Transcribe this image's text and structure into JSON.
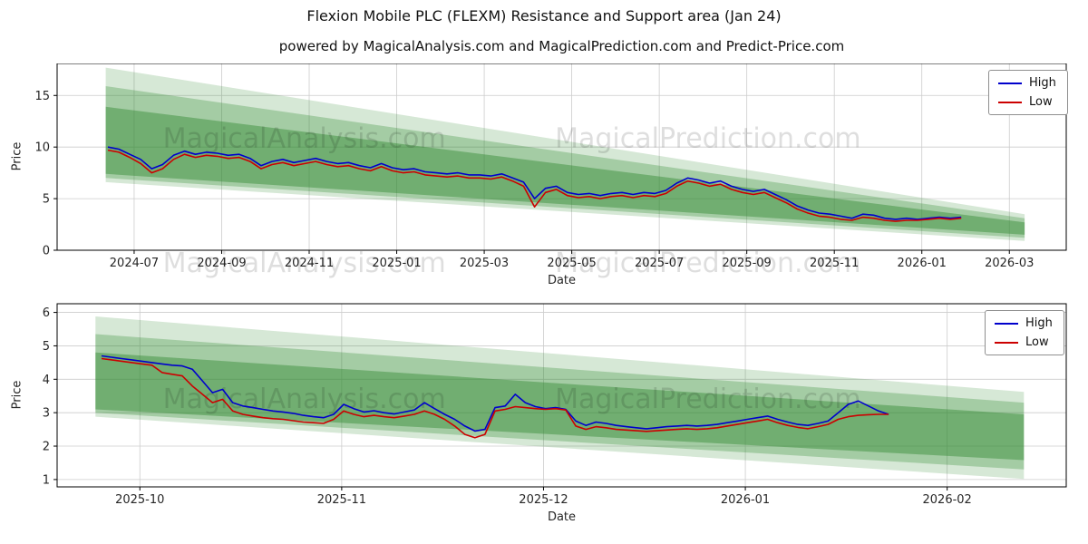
{
  "figure": {
    "title": "Flexion Mobile PLC (FLEXM) Resistance and Support area (Jan 24)",
    "subtitle": "powered by MagicalAnalysis.com and MagicalPrediction.com and Predict-Price.com"
  },
  "watermarks": {
    "left": "MagicalAnalysis.com",
    "right": "MagicalPrediction.com"
  },
  "colors": {
    "high": "#0000cc",
    "low": "#cc0000",
    "band": "#338a33",
    "grid": "#cccccc",
    "spine": "#000000",
    "watermark": "rgba(0,0,0,0.13)"
  },
  "legend": {
    "items": [
      {
        "label": "High",
        "color": "#0000cc"
      },
      {
        "label": "Low",
        "color": "#cc0000"
      }
    ]
  },
  "chart_data": [
    {
      "type": "line",
      "xlabel": "Date",
      "ylabel": "Price",
      "xlim": [
        -0.76,
        22.3
      ],
      "ylim": [
        0,
        18.1
      ],
      "xticks": [
        {
          "v": 1,
          "label": "2024-07"
        },
        {
          "v": 3,
          "label": "2024-09"
        },
        {
          "v": 5,
          "label": "2024-11"
        },
        {
          "v": 7,
          "label": "2025-01"
        },
        {
          "v": 9,
          "label": "2025-03"
        },
        {
          "v": 11,
          "label": "2025-05"
        },
        {
          "v": 13,
          "label": "2025-07"
        },
        {
          "v": 15,
          "label": "2025-09"
        },
        {
          "v": 17,
          "label": "2025-11"
        },
        {
          "v": 19,
          "label": "2026-01"
        },
        {
          "v": 21,
          "label": "2026-03"
        }
      ],
      "yticks": [
        0,
        5,
        10,
        15
      ],
      "bands": [
        {
          "x": [
            0.35,
            21.35
          ],
          "upper": [
            17.7,
            3.5
          ],
          "lower": [
            6.6,
            0.9
          ],
          "alpha": 0.2
        },
        {
          "x": [
            0.35,
            21.35
          ],
          "upper": [
            15.9,
            3.1
          ],
          "lower": [
            7.0,
            1.2
          ],
          "alpha": 0.3
        },
        {
          "x": [
            0.35,
            21.35
          ],
          "upper": [
            13.9,
            2.7
          ],
          "lower": [
            7.4,
            1.5
          ],
          "alpha": 0.45
        }
      ],
      "series": [
        {
          "name": "High",
          "color": "#0000cc",
          "x_start": 0.4,
          "x_step": 0.25,
          "y": [
            10.0,
            9.8,
            9.3,
            8.8,
            7.9,
            8.3,
            9.2,
            9.6,
            9.3,
            9.5,
            9.4,
            9.2,
            9.3,
            8.9,
            8.2,
            8.6,
            8.8,
            8.5,
            8.7,
            8.9,
            8.6,
            8.4,
            8.5,
            8.2,
            8.0,
            8.4,
            8.0,
            7.8,
            7.9,
            7.6,
            7.5,
            7.4,
            7.5,
            7.3,
            7.3,
            7.2,
            7.4,
            7.0,
            6.6,
            5.0,
            6.0,
            6.2,
            5.6,
            5.4,
            5.5,
            5.3,
            5.5,
            5.6,
            5.4,
            5.6,
            5.5,
            5.8,
            6.5,
            7.0,
            6.8,
            6.5,
            6.7,
            6.2,
            5.9,
            5.7,
            5.9,
            5.4,
            4.9,
            4.3,
            3.9,
            3.6,
            3.5,
            3.3,
            3.1,
            3.5,
            3.4,
            3.1,
            3.0,
            3.1,
            3.0,
            3.1,
            3.2,
            3.1,
            3.2
          ]
        },
        {
          "name": "Low",
          "color": "#cc0000",
          "x_start": 0.4,
          "x_step": 0.25,
          "y": [
            9.7,
            9.5,
            9.0,
            8.4,
            7.5,
            7.9,
            8.8,
            9.3,
            9.0,
            9.2,
            9.1,
            8.9,
            9.0,
            8.6,
            7.9,
            8.3,
            8.5,
            8.2,
            8.4,
            8.6,
            8.3,
            8.1,
            8.2,
            7.9,
            7.7,
            8.1,
            7.7,
            7.5,
            7.6,
            7.3,
            7.2,
            7.1,
            7.2,
            7.0,
            7.0,
            6.9,
            7.1,
            6.7,
            6.2,
            4.2,
            5.6,
            5.9,
            5.3,
            5.1,
            5.2,
            5.0,
            5.2,
            5.3,
            5.1,
            5.3,
            5.2,
            5.5,
            6.2,
            6.7,
            6.5,
            6.2,
            6.4,
            5.9,
            5.6,
            5.4,
            5.6,
            5.1,
            4.6,
            4.0,
            3.6,
            3.3,
            3.2,
            3.0,
            2.9,
            3.2,
            3.1,
            2.9,
            2.8,
            2.9,
            2.9,
            3.0,
            3.1,
            3.0,
            3.1
          ]
        }
      ]
    },
    {
      "type": "line",
      "xlabel": "Date",
      "ylabel": "Price",
      "xlim": [
        0.59,
        5.59
      ],
      "ylim": [
        0.78,
        6.26
      ],
      "xticks": [
        {
          "v": 1,
          "label": "2025-10"
        },
        {
          "v": 2,
          "label": "2025-11"
        },
        {
          "v": 3,
          "label": "2025-12"
        },
        {
          "v": 4,
          "label": "2026-01"
        },
        {
          "v": 5,
          "label": "2026-02"
        }
      ],
      "yticks": [
        1,
        2,
        3,
        4,
        5,
        6
      ],
      "bands": [
        {
          "x": [
            0.78,
            5.38
          ],
          "upper": [
            5.88,
            3.62
          ],
          "lower": [
            2.88,
            1.02
          ],
          "alpha": 0.2
        },
        {
          "x": [
            0.78,
            5.38
          ],
          "upper": [
            5.35,
            3.3
          ],
          "lower": [
            3.0,
            1.3
          ],
          "alpha": 0.3
        },
        {
          "x": [
            0.78,
            5.38
          ],
          "upper": [
            4.8,
            2.95
          ],
          "lower": [
            3.1,
            1.58
          ],
          "alpha": 0.45
        }
      ],
      "series": [
        {
          "name": "High",
          "color": "#0000cc",
          "x_start": 0.81,
          "x_step": 0.05,
          "y": [
            4.7,
            4.66,
            4.62,
            4.58,
            4.54,
            4.5,
            4.46,
            4.42,
            4.4,
            4.3,
            3.95,
            3.6,
            3.7,
            3.3,
            3.2,
            3.15,
            3.1,
            3.05,
            3.02,
            2.98,
            2.92,
            2.88,
            2.85,
            2.95,
            3.25,
            3.12,
            3.02,
            3.06,
            3.0,
            2.96,
            3.02,
            3.08,
            3.3,
            3.12,
            2.95,
            2.8,
            2.6,
            2.45,
            2.5,
            3.15,
            3.2,
            3.55,
            3.3,
            3.18,
            3.12,
            3.15,
            3.1,
            2.75,
            2.62,
            2.72,
            2.68,
            2.62,
            2.58,
            2.55,
            2.52,
            2.55,
            2.58,
            2.6,
            2.62,
            2.6,
            2.62,
            2.65,
            2.7,
            2.75,
            2.8,
            2.85,
            2.9,
            2.8,
            2.72,
            2.65,
            2.62,
            2.68,
            2.75,
            3.0,
            3.25,
            3.35,
            3.2,
            3.05,
            2.95
          ]
        },
        {
          "name": "Low",
          "color": "#cc0000",
          "x_start": 0.81,
          "x_step": 0.05,
          "y": [
            4.62,
            4.58,
            4.54,
            4.5,
            4.46,
            4.42,
            4.2,
            4.15,
            4.1,
            3.8,
            3.55,
            3.3,
            3.4,
            3.05,
            2.95,
            2.9,
            2.85,
            2.82,
            2.8,
            2.76,
            2.72,
            2.7,
            2.68,
            2.8,
            3.05,
            2.95,
            2.88,
            2.92,
            2.88,
            2.85,
            2.9,
            2.95,
            3.05,
            2.95,
            2.8,
            2.6,
            2.35,
            2.25,
            2.35,
            3.05,
            3.1,
            3.18,
            3.15,
            3.12,
            3.1,
            3.12,
            3.08,
            2.6,
            2.5,
            2.58,
            2.55,
            2.5,
            2.48,
            2.46,
            2.44,
            2.46,
            2.48,
            2.5,
            2.52,
            2.5,
            2.52,
            2.55,
            2.6,
            2.65,
            2.7,
            2.75,
            2.8,
            2.7,
            2.62,
            2.56,
            2.52,
            2.58,
            2.65,
            2.8,
            2.88,
            2.92,
            2.94,
            2.95,
            2.95
          ]
        }
      ]
    }
  ]
}
